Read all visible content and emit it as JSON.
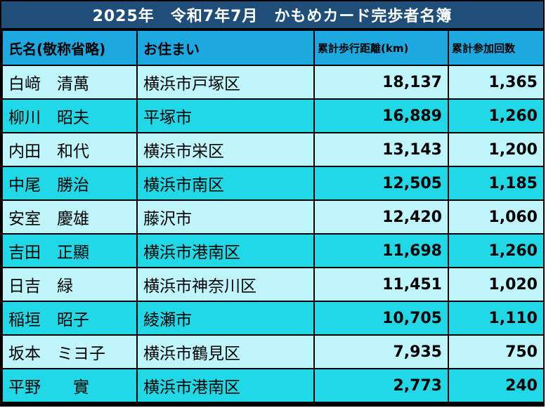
{
  "title": "2025年　令和7年7月　かもめカード完歩者名簿",
  "headers": {
    "name": "氏名(敬称省略)",
    "address": "お住まい",
    "distance": "累計歩行距離(km)",
    "count": "累計参加回数"
  },
  "rows": [
    {
      "name": "白﨑　清萬",
      "address": "横浜市戸塚区",
      "distance": "18,137",
      "count": "1,365"
    },
    {
      "name": "柳川　昭夫",
      "address": "平塚市",
      "distance": "16,889",
      "count": "1,260"
    },
    {
      "name": "内田　和代",
      "address": "横浜市栄区",
      "distance": "13,143",
      "count": "1,200"
    },
    {
      "name": "中尾　勝治",
      "address": "横浜市南区",
      "distance": "12,505",
      "count": "1,185"
    },
    {
      "name": "安室　慶雄",
      "address": "藤沢市",
      "distance": "12,420",
      "count": "1,060"
    },
    {
      "name": "吉田　正顯",
      "address": "横浜市港南区",
      "distance": "11,698",
      "count": "1,260"
    },
    {
      "name": "日吉　緑",
      "address": "横浜市神奈川区",
      "distance": "11,451",
      "count": "1,020"
    },
    {
      "name": "稲垣　昭子",
      "address": "綾瀬市",
      "distance": "10,705",
      "count": "1,110"
    },
    {
      "name": "坂本　ミヨ子",
      "address": "横浜市鶴見区",
      "distance": "7,935",
      "count": "750"
    },
    {
      "name": "平野　　實",
      "address": "横浜市港南区",
      "distance": "2,773",
      "count": "240"
    }
  ],
  "colors": {
    "title_bg": "#1f4e78",
    "header_bg": "#1da8e0",
    "row_light": "#bff5fd",
    "row_dark": "#21d9e6"
  }
}
